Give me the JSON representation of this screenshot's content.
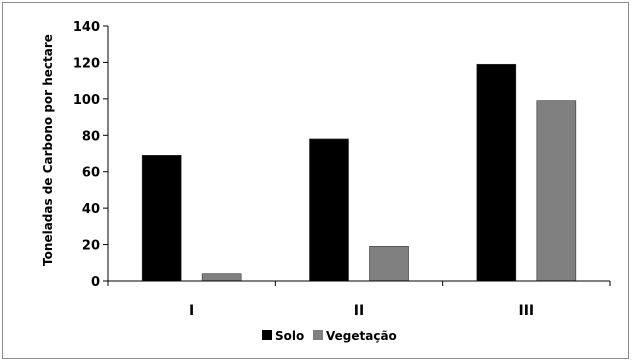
{
  "chart_data": {
    "type": "bar",
    "categories": [
      "I",
      "II",
      "III"
    ],
    "series": [
      {
        "name": "Solo",
        "values": [
          69,
          78,
          119
        ],
        "color": "#000000"
      },
      {
        "name": "Vegetação",
        "values": [
          4,
          19,
          99
        ],
        "color": "#808080"
      }
    ],
    "ylabel": "Toneladas de Carbono por hectare",
    "ylim": [
      0,
      140
    ],
    "yticks": [
      0,
      20,
      40,
      60,
      80,
      100,
      120,
      140
    ],
    "grid": false,
    "legend_position": "bottom"
  }
}
